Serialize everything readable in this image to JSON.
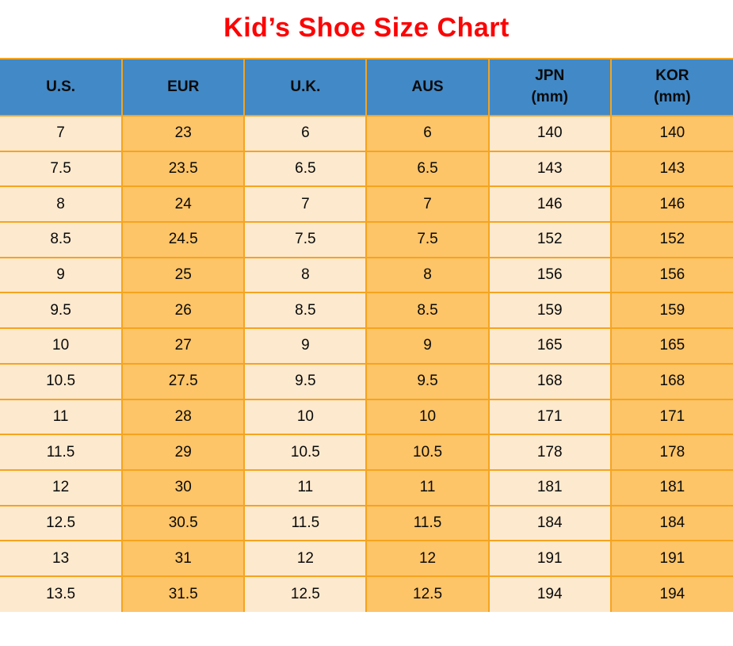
{
  "title": "Kid’s Shoe Size Chart",
  "colors": {
    "title_red": "#FB0404",
    "header_bg": "#4289C7",
    "cell_light": "#FDE9CE",
    "cell_orange": "#FEC468",
    "border": "#F5A41F"
  },
  "table": {
    "columns": [
      {
        "key": "us",
        "label": "U.S.",
        "sub": ""
      },
      {
        "key": "eur",
        "label": "EUR",
        "sub": ""
      },
      {
        "key": "uk",
        "label": "U.K.",
        "sub": ""
      },
      {
        "key": "aus",
        "label": "AUS",
        "sub": ""
      },
      {
        "key": "jpn",
        "label": "JPN",
        "sub": "(mm)"
      },
      {
        "key": "kor",
        "label": "KOR",
        "sub": "(mm)"
      }
    ],
    "rows": [
      [
        "7",
        "23",
        "6",
        "6",
        "140",
        "140"
      ],
      [
        "7.5",
        "23.5",
        "6.5",
        "6.5",
        "143",
        "143"
      ],
      [
        "8",
        "24",
        "7",
        "7",
        "146",
        "146"
      ],
      [
        "8.5",
        "24.5",
        "7.5",
        "7.5",
        "152",
        "152"
      ],
      [
        "9",
        "25",
        "8",
        "8",
        "156",
        "156"
      ],
      [
        "9.5",
        "26",
        "8.5",
        "8.5",
        "159",
        "159"
      ],
      [
        "10",
        "27",
        "9",
        "9",
        "165",
        "165"
      ],
      [
        "10.5",
        "27.5",
        "9.5",
        "9.5",
        "168",
        "168"
      ],
      [
        "11",
        "28",
        "10",
        "10",
        "171",
        "171"
      ],
      [
        "11.5",
        "29",
        "10.5",
        "10.5",
        "178",
        "178"
      ],
      [
        "12",
        "30",
        "11",
        "11",
        "181",
        "181"
      ],
      [
        "12.5",
        "30.5",
        "11.5",
        "11.5",
        "184",
        "184"
      ],
      [
        "13",
        "31",
        "12",
        "12",
        "191",
        "191"
      ],
      [
        "13.5",
        "31.5",
        "12.5",
        "12.5",
        "194",
        "194"
      ]
    ]
  },
  "chart_data": {
    "type": "table",
    "title": "Kid’s Shoe Size Chart",
    "columns": [
      "U.S.",
      "EUR",
      "U.K.",
      "AUS",
      "JPN (mm)",
      "KOR (mm)"
    ],
    "rows": [
      [
        7,
        23,
        6,
        6,
        140,
        140
      ],
      [
        7.5,
        23.5,
        6.5,
        6.5,
        143,
        143
      ],
      [
        8,
        24,
        7,
        7,
        146,
        146
      ],
      [
        8.5,
        24.5,
        7.5,
        7.5,
        152,
        152
      ],
      [
        9,
        25,
        8,
        8,
        156,
        156
      ],
      [
        9.5,
        26,
        8.5,
        8.5,
        159,
        159
      ],
      [
        10,
        27,
        9,
        9,
        165,
        165
      ],
      [
        10.5,
        27.5,
        9.5,
        9.5,
        168,
        168
      ],
      [
        11,
        28,
        10,
        10,
        171,
        171
      ],
      [
        11.5,
        29,
        10.5,
        10.5,
        178,
        178
      ],
      [
        12,
        30,
        11,
        11,
        181,
        181
      ],
      [
        12.5,
        30.5,
        11.5,
        11.5,
        184,
        184
      ],
      [
        13,
        31,
        12,
        12,
        191,
        191
      ],
      [
        13.5,
        31.5,
        12.5,
        12.5,
        194,
        194
      ]
    ],
    "layout_hints": {
      "header_fill": "#4289C7",
      "odd_column_fill": "#FDE9CE",
      "even_column_fill": "#FEC468",
      "grid": true
    }
  }
}
